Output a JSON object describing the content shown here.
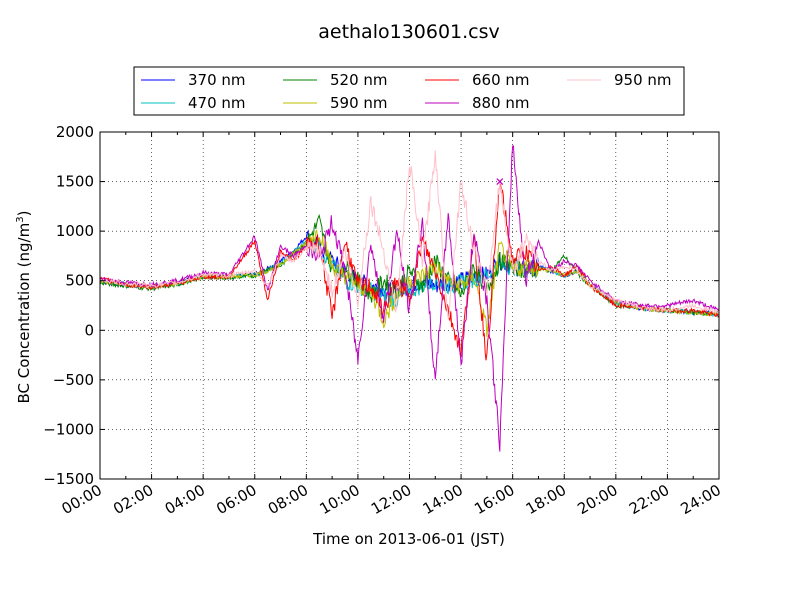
{
  "chart_data": {
    "type": "line",
    "title": "aethalo130601.csv",
    "xlabel": "Time on 2013-06-01 (JST)",
    "ylabel": "BC Concentration (ng/m³)",
    "ylabel_parts": [
      "BC Concentration (ng/m",
      "3",
      ")"
    ],
    "xlim": [
      "00:00",
      "24:00"
    ],
    "ylim": [
      -1500,
      2000
    ],
    "grid": true,
    "legend_position": "top",
    "x_ticks": [
      "00:00",
      "02:00",
      "04:00",
      "06:00",
      "08:00",
      "10:00",
      "12:00",
      "14:00",
      "16:00",
      "18:00",
      "20:00",
      "22:00",
      "24:00"
    ],
    "y_ticks": [
      -1500,
      -1000,
      -500,
      0,
      500,
      1000,
      1500,
      2000
    ],
    "x_hours": [
      0,
      1,
      2,
      3,
      4,
      5,
      6,
      6.5,
      7,
      7.5,
      8,
      8.5,
      9,
      9.5,
      10,
      10.5,
      11,
      11.5,
      12,
      12.5,
      13,
      13.5,
      14,
      14.5,
      15,
      15.5,
      16,
      16.5,
      17,
      17.5,
      18,
      18.5,
      19,
      20,
      21,
      22,
      23,
      24
    ],
    "series": [
      {
        "name": "370 nm",
        "color": "#0000ff",
        "values": [
          500,
          450,
          450,
          480,
          550,
          540,
          560,
          620,
          700,
          800,
          950,
          850,
          700,
          600,
          500,
          450,
          420,
          400,
          450,
          500,
          450,
          480,
          500,
          550,
          560,
          700,
          650,
          600,
          650,
          600,
          550,
          600,
          450,
          280,
          220,
          200,
          180,
          170
        ]
      },
      {
        "name": "470 nm",
        "color": "#00bfbf",
        "values": [
          500,
          460,
          440,
          470,
          540,
          540,
          560,
          600,
          680,
          780,
          900,
          850,
          650,
          500,
          450,
          400,
          350,
          300,
          400,
          450,
          500,
          450,
          480,
          520,
          550,
          650,
          650,
          620,
          640,
          600,
          550,
          600,
          450,
          280,
          220,
          200,
          180,
          160
        ]
      },
      {
        "name": "520 nm",
        "color": "#008000",
        "values": [
          480,
          450,
          420,
          460,
          540,
          530,
          550,
          620,
          650,
          780,
          880,
          1100,
          600,
          650,
          500,
          350,
          500,
          400,
          600,
          450,
          700,
          500,
          350,
          650,
          400,
          700,
          650,
          600,
          620,
          600,
          750,
          580,
          450,
          250,
          230,
          200,
          180,
          170
        ]
      },
      {
        "name": "590 nm",
        "color": "#bfbf00",
        "values": [
          500,
          460,
          440,
          470,
          540,
          540,
          560,
          600,
          660,
          780,
          880,
          1000,
          650,
          550,
          450,
          400,
          100,
          350,
          500,
          550,
          650,
          500,
          450,
          550,
          0,
          850,
          600,
          650,
          620,
          600,
          550,
          600,
          450,
          280,
          220,
          200,
          180,
          160
        ]
      },
      {
        "name": "660 nm",
        "color": "#ff0000",
        "values": [
          520,
          460,
          440,
          470,
          540,
          540,
          900,
          300,
          800,
          700,
          850,
          900,
          120,
          900,
          450,
          450,
          200,
          500,
          300,
          900,
          600,
          200,
          -200,
          900,
          -300,
          1500,
          700,
          800,
          600,
          650,
          550,
          650,
          450,
          250,
          230,
          200,
          200,
          150
        ]
      },
      {
        "name": "880 nm",
        "color": "#bf00bf",
        "values": [
          520,
          480,
          460,
          500,
          580,
          560,
          950,
          400,
          850,
          750,
          850,
          700,
          1100,
          600,
          -300,
          900,
          100,
          1000,
          200,
          1100,
          -550,
          1200,
          -350,
          1000,
          300,
          -1150,
          1900,
          500,
          900,
          600,
          700,
          650,
          500,
          300,
          250,
          250,
          300,
          200
        ]
      },
      {
        "name": "950 nm",
        "color": "#ffc0cb",
        "values": [
          510,
          470,
          450,
          480,
          560,
          550,
          600,
          450,
          750,
          700,
          820,
          800,
          400,
          800,
          300,
          1300,
          800,
          200,
          1700,
          700,
          1800,
          100,
          1500,
          800,
          400,
          1500,
          600,
          900,
          700,
          600,
          650,
          600,
          450,
          300,
          230,
          200,
          250,
          180
        ]
      }
    ],
    "marker": {
      "x": 15.5,
      "y": 1500,
      "color": "#bf00bf"
    }
  }
}
